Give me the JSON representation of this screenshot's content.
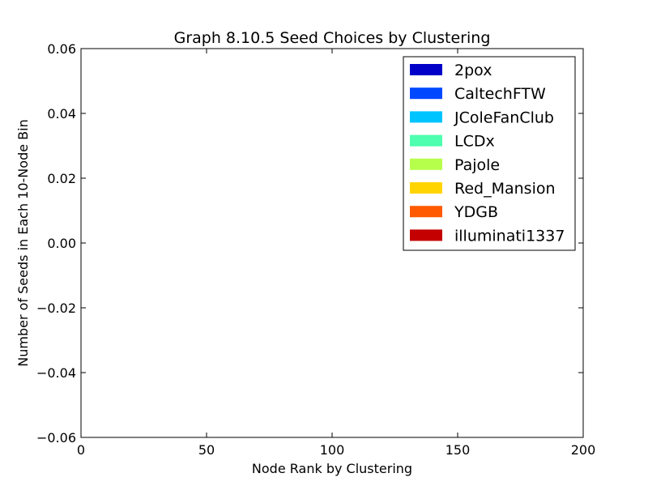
{
  "chart_data": {
    "type": "bar",
    "title": "Graph 8.10.5 Seed Choices by Clustering",
    "xlabel": "Node Rank by Clustering",
    "ylabel": "Number of Seeds in Each 10-Node Bin",
    "xlim": [
      0,
      200
    ],
    "ylim": [
      -0.06,
      0.06
    ],
    "x_ticks": [
      0,
      50,
      100,
      150,
      200
    ],
    "x_tick_labels": [
      "0",
      "50",
      "100",
      "150",
      "200"
    ],
    "y_ticks": [
      -0.06,
      -0.04,
      -0.02,
      0.0,
      0.02,
      0.04,
      0.06
    ],
    "y_tick_labels": [
      "−0.06",
      "−0.04",
      "−0.02",
      "0.00",
      "0.02",
      "0.04",
      "0.06"
    ],
    "grid": false,
    "legend_position": "top-right",
    "series": [
      {
        "name": "2pox",
        "color": "#0000c8",
        "values": []
      },
      {
        "name": "CaltechFTW",
        "color": "#0048ff",
        "values": []
      },
      {
        "name": "JColeFanClub",
        "color": "#00c4ff",
        "values": []
      },
      {
        "name": "LCDx",
        "color": "#4dffae",
        "values": []
      },
      {
        "name": "Pajole",
        "color": "#b6ff4a",
        "values": []
      },
      {
        "name": "Red_Mansion",
        "color": "#ffd400",
        "values": []
      },
      {
        "name": "YDGB",
        "color": "#ff5a00",
        "values": []
      },
      {
        "name": "illuminati1337",
        "color": "#c40000",
        "values": []
      }
    ]
  }
}
